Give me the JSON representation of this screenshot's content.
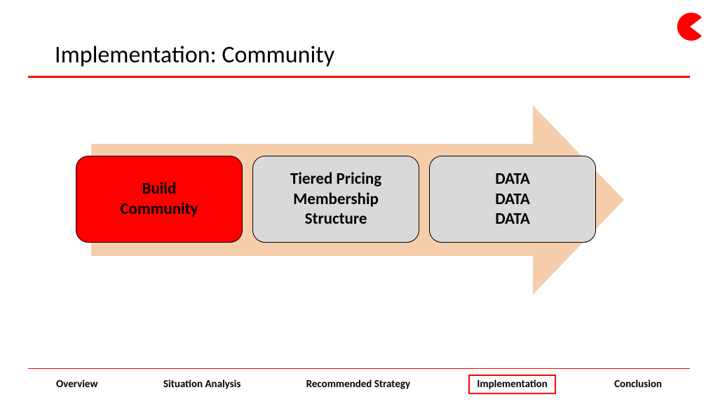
{
  "colors": {
    "accent_red": "#ff0000",
    "arrow_fill": "#f7ceac",
    "box_active_fill": "#ff0000",
    "box_inactive_fill": "#d9d9d9",
    "box_border": "#000000",
    "text_black": "#000000",
    "footer_line": "#ff0000",
    "nav_active_border": "#ff0000",
    "background": "#ffffff"
  },
  "title": "Implementation: Community",
  "process_arrow": {
    "type": "process-arrow",
    "direction": "right",
    "fill": "#f7ceac",
    "boxes": [
      {
        "label": "Build\nCommunity",
        "fill": "#ff0000",
        "text_color": "#000000",
        "active": true,
        "border_radius": 18,
        "font_size": 23,
        "font_weight": 700
      },
      {
        "label": "Tiered Pricing\nMembership\nStructure",
        "fill": "#d9d9d9",
        "text_color": "#000000",
        "active": false,
        "border_radius": 18,
        "font_size": 23,
        "font_weight": 700
      },
      {
        "label": "DATA\nDATA\nDATA",
        "fill": "#d9d9d9",
        "text_color": "#000000",
        "active": false,
        "border_radius": 18,
        "font_size": 23,
        "font_weight": 700
      }
    ]
  },
  "footer_nav": {
    "items": [
      {
        "label": "Overview",
        "active": false
      },
      {
        "label": "Situation Analysis",
        "active": false
      },
      {
        "label": "Recommended Strategy",
        "active": false
      },
      {
        "label": "Implementation",
        "active": true
      },
      {
        "label": "Conclusion",
        "active": false
      }
    ]
  },
  "logo": {
    "type": "pacman",
    "fill": "#ff0000"
  }
}
